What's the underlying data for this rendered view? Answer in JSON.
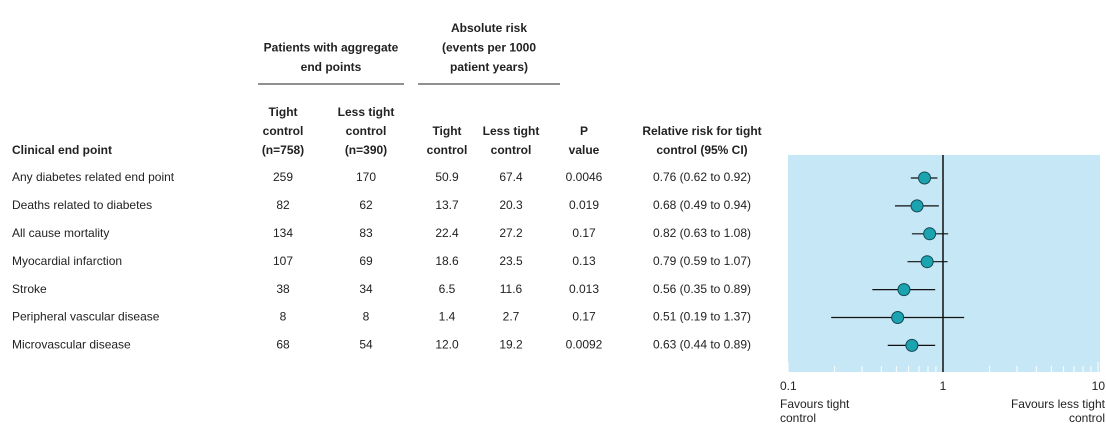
{
  "table": {
    "group_headers": [
      [
        "Patients with aggregate",
        "end points"
      ],
      [
        "Absolute risk",
        "(events per 1000",
        "patient years)"
      ]
    ],
    "headers": [
      [
        "Clinical end point"
      ],
      [
        "Tight",
        "control",
        "(n=758)"
      ],
      [
        "Less tight",
        "control",
        "(n=390)"
      ],
      [
        "Tight",
        "control"
      ],
      [
        "Less tight",
        "control"
      ],
      [
        "P",
        "value"
      ],
      [
        "Relative risk for tight",
        "control (95% CI)"
      ]
    ],
    "rows": [
      [
        "Any diabetes related end point",
        "259",
        "170",
        "50.9",
        "67.4",
        "0.0046",
        "0.76 (0.62 to 0.92)"
      ],
      [
        "Deaths related to diabetes",
        "82",
        "62",
        "13.7",
        "20.3",
        "0.019",
        "0.68 (0.49 to 0.94)"
      ],
      [
        "All cause mortality",
        "134",
        "83",
        "22.4",
        "27.2",
        "0.17",
        "0.82 (0.63 to 1.08)"
      ],
      [
        "Myocardial infarction",
        "107",
        "69",
        "18.6",
        "23.5",
        "0.13",
        "0.79 (0.59 to 1.07)"
      ],
      [
        "Stroke",
        "38",
        "34",
        "6.5",
        "11.6",
        "0.013",
        "0.56 (0.35 to 0.89)"
      ],
      [
        "Peripheral vascular disease",
        "8",
        "8",
        "1.4",
        "2.7",
        "0.17",
        "0.51 (0.19 to 1.37)"
      ],
      [
        "Microvascular disease",
        "68",
        "54",
        "12.0",
        "19.2",
        "0.0092",
        "0.63 (0.44 to 0.89)"
      ]
    ]
  },
  "chart_data": {
    "type": "forest",
    "xscale": "log",
    "xlim": [
      0.1,
      10
    ],
    "xticks": [
      0.1,
      1,
      10
    ],
    "minor_xticks": [
      0.2,
      0.3,
      0.4,
      0.5,
      0.6,
      0.7,
      0.8,
      0.9,
      2,
      3,
      4,
      5,
      6,
      7,
      8,
      9
    ],
    "values": [
      0.76,
      0.68,
      0.82,
      0.79,
      0.56,
      0.51,
      0.63
    ],
    "lower": [
      0.62,
      0.49,
      0.63,
      0.59,
      0.35,
      0.19,
      0.44
    ],
    "upper": [
      0.92,
      0.94,
      1.08,
      1.07,
      0.89,
      1.37,
      0.89
    ],
    "reference_line": 1,
    "color": "#1ba3b0",
    "background": "#c6e7f5",
    "x_labels": [
      [
        "Favours tight",
        "control"
      ],
      [
        "Favours less tight",
        "control"
      ]
    ]
  }
}
